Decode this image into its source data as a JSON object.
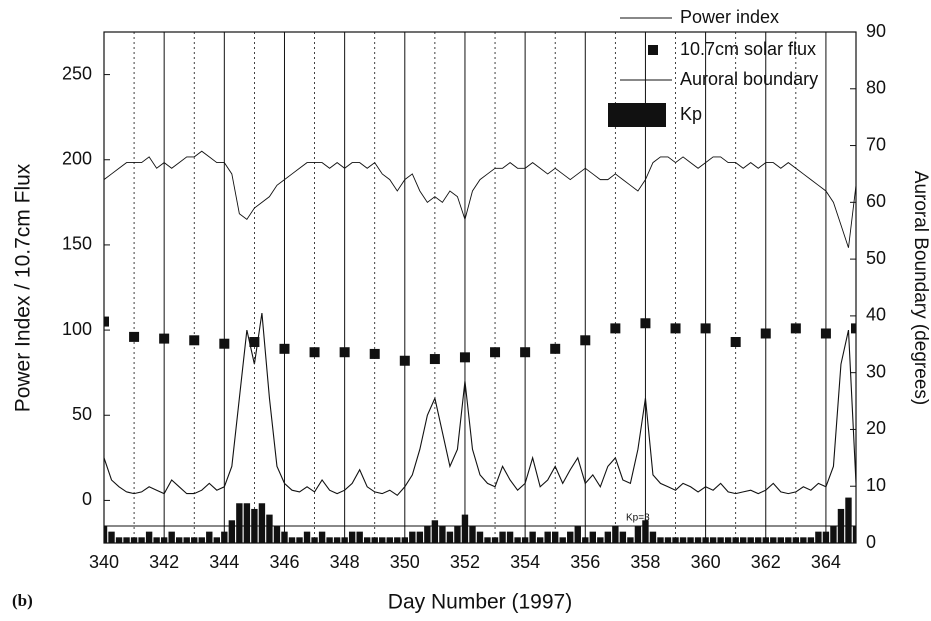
{
  "chart_data": {
    "type": "line",
    "panel_label": "(b)",
    "x_label": "Day Number (1997)",
    "y_label": "Power Index / 10.7cm Flux",
    "y2_label": "Auroral Boundary (degrees)",
    "xlim": [
      340,
      365
    ],
    "xticks": [
      340,
      342,
      344,
      346,
      348,
      350,
      352,
      354,
      356,
      358,
      360,
      362,
      364
    ],
    "ylim": [
      -25,
      275
    ],
    "yticks": [
      0,
      50,
      100,
      150,
      200,
      250
    ],
    "y2lim": [
      0,
      90
    ],
    "y2ticks": [
      0,
      10,
      20,
      30,
      40,
      50,
      60,
      70,
      80,
      90
    ],
    "grid": true,
    "legend": "top-right",
    "x": [
      340,
      340.25,
      340.5,
      340.75,
      341,
      341.25,
      341.5,
      341.75,
      342,
      342.25,
      342.5,
      342.75,
      343,
      343.25,
      343.5,
      343.75,
      344,
      344.25,
      344.5,
      344.75,
      345,
      345.25,
      345.5,
      345.75,
      346,
      346.25,
      346.5,
      346.75,
      347,
      347.25,
      347.5,
      347.75,
      348,
      348.25,
      348.5,
      348.75,
      349,
      349.25,
      349.5,
      349.75,
      350,
      350.25,
      350.5,
      350.75,
      351,
      351.25,
      351.5,
      351.75,
      352,
      352.25,
      352.5,
      352.75,
      353,
      353.25,
      353.5,
      353.75,
      354,
      354.25,
      354.5,
      354.75,
      355,
      355.25,
      355.5,
      355.75,
      356,
      356.25,
      356.5,
      356.75,
      357,
      357.25,
      357.5,
      357.75,
      358,
      358.25,
      358.5,
      358.75,
      359,
      359.25,
      359.5,
      359.75,
      360,
      360.25,
      360.5,
      360.75,
      361,
      361.25,
      361.5,
      361.75,
      362,
      362.25,
      362.5,
      362.75,
      363,
      363.25,
      363.5,
      363.75,
      364,
      364.25,
      364.5,
      364.75,
      365
    ],
    "series": [
      {
        "name": "Power index",
        "type": "line",
        "color": "#111111",
        "values": [
          25,
          12,
          8,
          5,
          4,
          5,
          8,
          6,
          4,
          12,
          8,
          4,
          4,
          6,
          10,
          6,
          8,
          20,
          60,
          100,
          80,
          110,
          60,
          20,
          10,
          6,
          5,
          8,
          5,
          12,
          6,
          4,
          6,
          10,
          18,
          8,
          5,
          4,
          6,
          3,
          8,
          15,
          30,
          50,
          60,
          40,
          20,
          30,
          70,
          30,
          15,
          10,
          8,
          20,
          12,
          6,
          10,
          25,
          8,
          12,
          20,
          10,
          18,
          25,
          10,
          15,
          8,
          20,
          25,
          12,
          10,
          30,
          60,
          15,
          10,
          8,
          6,
          10,
          8,
          5,
          8,
          6,
          10,
          5,
          4,
          5,
          6,
          4,
          6,
          10,
          5,
          4,
          5,
          8,
          6,
          10,
          8,
          20,
          80,
          100,
          10
        ]
      },
      {
        "name": "10.7cm solar flux",
        "type": "scatter",
        "color": "#111111",
        "x": [
          340,
          341,
          342,
          343,
          344,
          345,
          346,
          347,
          348,
          349,
          350,
          351,
          352,
          353,
          354,
          355,
          356,
          357,
          358,
          359,
          360,
          361,
          362,
          363,
          364,
          365
        ],
        "values": [
          105,
          96,
          95,
          94,
          92,
          93,
          89,
          87,
          87,
          86,
          82,
          83,
          84,
          87,
          87,
          89,
          94,
          101,
          104,
          101,
          101,
          93,
          98,
          101,
          98,
          101
        ]
      },
      {
        "name": "Auroral boundary",
        "type": "line",
        "axis": "y2",
        "color": "#111111",
        "values": [
          64,
          65,
          66,
          67,
          67,
          67,
          68,
          66,
          67,
          66,
          67,
          68,
          68,
          69,
          68,
          67,
          67,
          65,
          58,
          57,
          59,
          60,
          61,
          63,
          64,
          65,
          66,
          67,
          67,
          67,
          66,
          67,
          66,
          67,
          67,
          66,
          67,
          65,
          64,
          62,
          64,
          65,
          62,
          60,
          61,
          60,
          62,
          61,
          57,
          62,
          64,
          65,
          66,
          66,
          67,
          66,
          66,
          67,
          66,
          65,
          66,
          65,
          64,
          65,
          66,
          65,
          64,
          64,
          65,
          64,
          63,
          62,
          64,
          67,
          68,
          68,
          67,
          68,
          67,
          66,
          67,
          68,
          68,
          67,
          67,
          66,
          67,
          66,
          67,
          67,
          66,
          67,
          66,
          65,
          64,
          63,
          62,
          60,
          56,
          52,
          63
        ]
      },
      {
        "name": "Kp",
        "type": "bar",
        "axis": "y2",
        "color": "#111111",
        "values": [
          3,
          2,
          1,
          1,
          1,
          1,
          2,
          1,
          1,
          2,
          1,
          1,
          1,
          1,
          2,
          1,
          2,
          4,
          7,
          7,
          6,
          7,
          5,
          3,
          2,
          1,
          1,
          2,
          1,
          2,
          1,
          1,
          1,
          2,
          2,
          1,
          1,
          1,
          1,
          1,
          1,
          2,
          2,
          3,
          4,
          3,
          2,
          3,
          5,
          3,
          2,
          1,
          1,
          2,
          2,
          1,
          1,
          2,
          1,
          2,
          2,
          1,
          2,
          3,
          1,
          2,
          1,
          2,
          3,
          2,
          1,
          3,
          4,
          2,
          1,
          1,
          1,
          1,
          1,
          1,
          1,
          1,
          1,
          1,
          1,
          1,
          1,
          1,
          1,
          1,
          1,
          1,
          1,
          1,
          1,
          2,
          2,
          3,
          6,
          8,
          3
        ]
      }
    ],
    "annotations": [
      {
        "text": "Kp=3",
        "value": 3,
        "axis": "y2"
      }
    ]
  }
}
